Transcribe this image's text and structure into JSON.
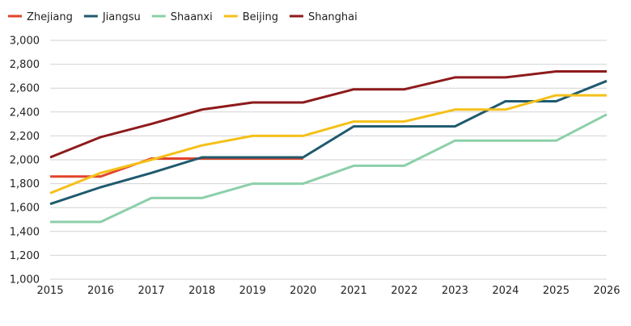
{
  "chart_data": {
    "type": "line",
    "title": "",
    "xlabel": "",
    "ylabel": "",
    "x": [
      "2015",
      "2016",
      "2017",
      "2018",
      "2019",
      "2020",
      "2021",
      "2022",
      "2023",
      "2024",
      "2025",
      "2026"
    ],
    "ylim": [
      1000,
      3000
    ],
    "yticks": [
      "1,000",
      "1,200",
      "1,400",
      "1,600",
      "1,800",
      "2,000",
      "2,200",
      "2,400",
      "2,600",
      "2,800",
      "3,000"
    ],
    "grid": "horizontal",
    "legend_position": "top-left",
    "series": [
      {
        "name": "Zhejiang",
        "color": "#e2432a",
        "values": [
          1860,
          1860,
          2010,
          2010,
          2010,
          2010,
          null,
          null,
          null,
          null,
          null,
          null
        ]
      },
      {
        "name": "Jiangsu",
        "color": "#1f5a6e",
        "values": [
          1630,
          1770,
          1890,
          2020,
          2020,
          2020,
          2280,
          2280,
          2280,
          2490,
          2490,
          2660
        ]
      },
      {
        "name": "Shaanxi",
        "color": "#8ccfaa",
        "values": [
          1480,
          1480,
          1680,
          1680,
          1800,
          1800,
          1950,
          1950,
          2160,
          2160,
          2160,
          2380
        ]
      },
      {
        "name": "Beijing",
        "color": "#f5c019",
        "values": [
          1720,
          1890,
          2000,
          2120,
          2200,
          2200,
          2320,
          2320,
          2420,
          2420,
          2540,
          2540
        ]
      },
      {
        "name": "Shanghai",
        "color": "#8e1a1c",
        "values": [
          2020,
          2190,
          2300,
          2420,
          2480,
          2480,
          2590,
          2590,
          2690,
          2690,
          2740,
          2740
        ]
      }
    ]
  }
}
